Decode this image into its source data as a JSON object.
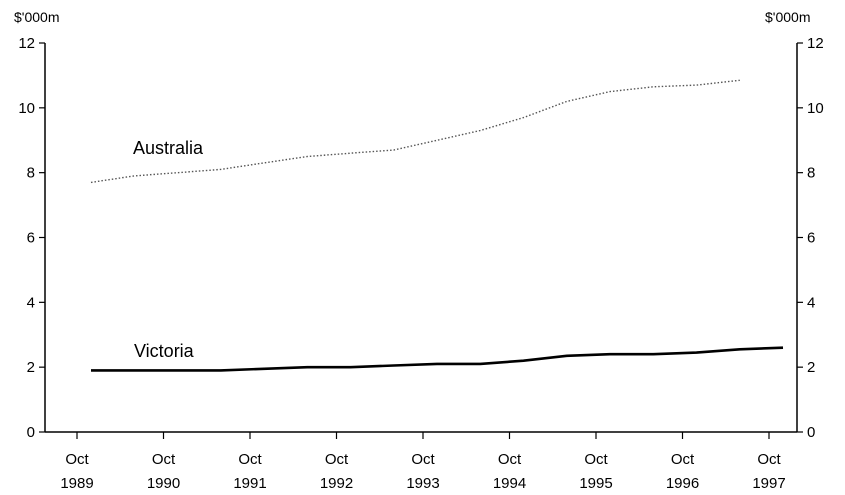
{
  "chart_data": {
    "type": "line",
    "title": "",
    "xlabel": "",
    "ylabel": "$'000m",
    "ylabel_right": "$'000m",
    "ylim": [
      0,
      12
    ],
    "y_ticks": [
      0,
      2,
      4,
      6,
      8,
      10,
      12
    ],
    "x_ticks": [
      {
        "month": "Oct",
        "year": "1989"
      },
      {
        "month": "Oct",
        "year": "1990"
      },
      {
        "month": "Oct",
        "year": "1991"
      },
      {
        "month": "Oct",
        "year": "1992"
      },
      {
        "month": "Oct",
        "year": "1993"
      },
      {
        "month": "Oct",
        "year": "1994"
      },
      {
        "month": "Oct",
        "year": "1995"
      },
      {
        "month": "Oct",
        "year": "1996"
      },
      {
        "month": "Oct",
        "year": "1997"
      }
    ],
    "x": [
      "Oct 1989",
      "Apr 1990",
      "Oct 1990",
      "Apr 1991",
      "Oct 1991",
      "Apr 1992",
      "Oct 1992",
      "Apr 1993",
      "Oct 1993",
      "Apr 1994",
      "Oct 1994",
      "Apr 1995",
      "Oct 1995",
      "Apr 1996",
      "Oct 1996",
      "Apr 1997",
      "Oct 1997"
    ],
    "grid": false,
    "series": [
      {
        "name": "Australia",
        "style": "dotted",
        "color": "#555555",
        "values": [
          7.7,
          7.9,
          8.0,
          8.1,
          8.3,
          8.5,
          8.6,
          8.7,
          9.0,
          9.3,
          9.7,
          10.2,
          10.5,
          10.65,
          10.7,
          10.85,
          null
        ]
      },
      {
        "name": "Victoria",
        "style": "solid",
        "color": "#000000",
        "values": [
          1.9,
          1.9,
          1.9,
          1.9,
          1.95,
          2.0,
          2.0,
          2.05,
          2.1,
          2.1,
          2.2,
          2.35,
          2.4,
          2.4,
          2.45,
          2.55,
          2.6
        ]
      }
    ]
  }
}
